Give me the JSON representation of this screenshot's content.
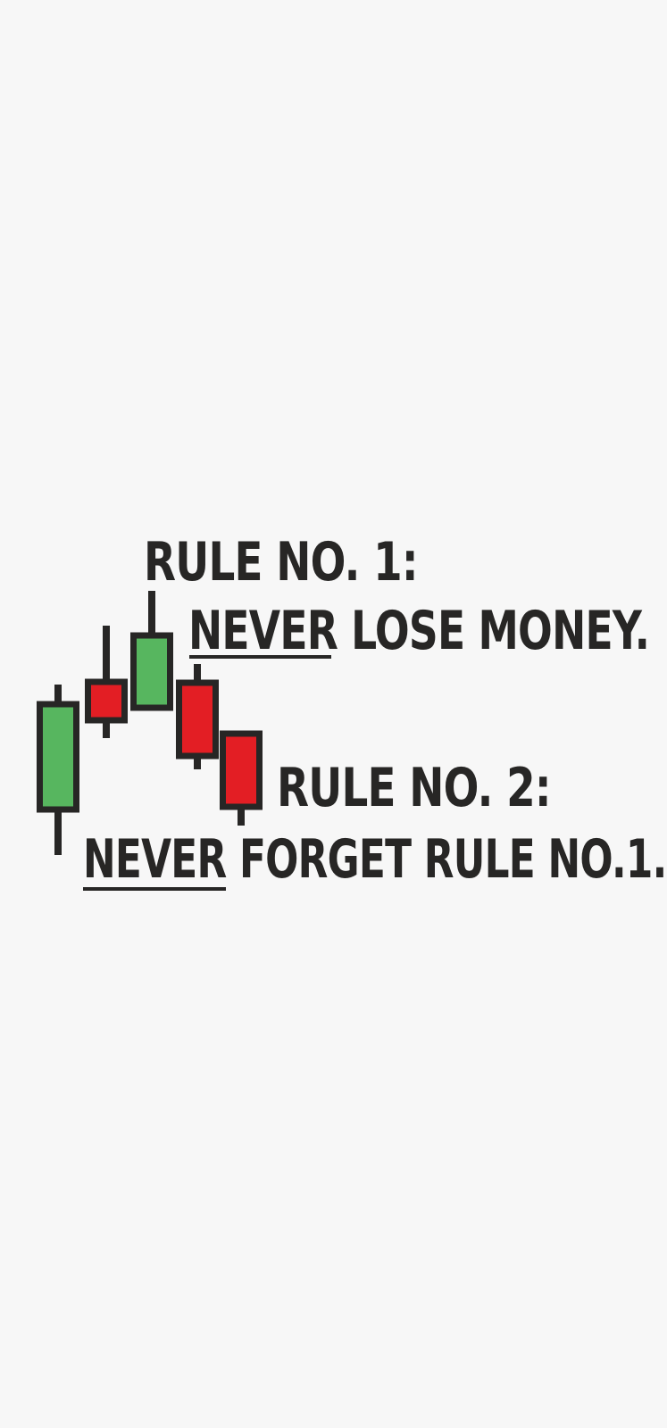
{
  "colors": {
    "background": "#f7f7f7",
    "ink": "#272625",
    "bull": "#57b65f",
    "bear": "#e31e24"
  },
  "text": {
    "rule1_title": "RULE NO. 1:",
    "rule1_line": "NEVER LOSE MONEY.",
    "rule2_title": "RULE NO. 2:",
    "rule2_line": "NEVER FORGET RULE NO.1."
  },
  "candles": [
    {
      "direction": "up"
    },
    {
      "direction": "down"
    },
    {
      "direction": "up"
    },
    {
      "direction": "down"
    },
    {
      "direction": "down"
    }
  ]
}
